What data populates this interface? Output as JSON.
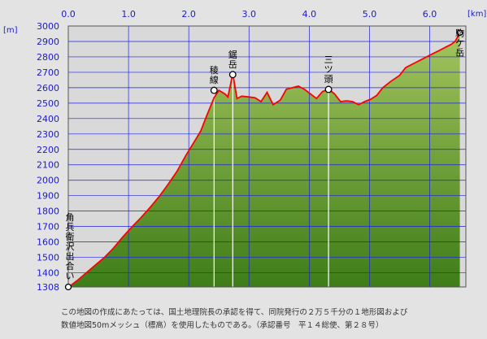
{
  "chart_data": {
    "type": "area",
    "x_unit_label": "[km]",
    "y_unit_label": "[m]",
    "x_ticks": [
      "0.0",
      "1.0",
      "2.0",
      "3.0",
      "4.0",
      "5.0",
      "6.0"
    ],
    "y_ticks": [
      "1308",
      "1400",
      "1500",
      "1600",
      "1700",
      "1800",
      "1900",
      "2000",
      "2100",
      "2200",
      "2300",
      "2400",
      "2500",
      "2600",
      "2700",
      "2800",
      "2900",
      "3000"
    ],
    "xlim": [
      0,
      6.6
    ],
    "ylim": [
      1308,
      3000
    ],
    "grid": true,
    "colors": {
      "plot_bg": "#d9d9d9",
      "grid": "#2020e0",
      "profile_line": "#ff0000",
      "fill_top": "#a4c45e",
      "fill_bottom": "#3e7d18",
      "axis_labels": "#1a1acc"
    },
    "series": [
      {
        "x": [
          0.0,
          0.05,
          0.15,
          0.3,
          0.45,
          0.6,
          0.75,
          0.9,
          1.05,
          1.2,
          1.35,
          1.5,
          1.65,
          1.8,
          1.95,
          2.1,
          2.2,
          2.3,
          2.42,
          2.5,
          2.6,
          2.65,
          2.73,
          2.8,
          2.88,
          3.0,
          3.1,
          3.2,
          3.3,
          3.4,
          3.52,
          3.62,
          3.72,
          3.82,
          3.92,
          4.02,
          4.12,
          4.22,
          4.32,
          4.42,
          4.52,
          4.62,
          4.72,
          4.82,
          4.92,
          5.02,
          5.12,
          5.22,
          5.35,
          5.5,
          5.6,
          5.75,
          5.9,
          6.05,
          6.15,
          6.25,
          6.35,
          6.42,
          6.5
        ],
        "y": [
          1308,
          1320,
          1350,
          1400,
          1450,
          1500,
          1560,
          1630,
          1695,
          1755,
          1820,
          1890,
          1970,
          2055,
          2160,
          2255,
          2320,
          2420,
          2535,
          2583,
          2560,
          2540,
          2690,
          2530,
          2545,
          2540,
          2535,
          2510,
          2570,
          2490,
          2520,
          2590,
          2600,
          2610,
          2590,
          2560,
          2530,
          2575,
          2590,
          2560,
          2510,
          2515,
          2510,
          2490,
          2510,
          2525,
          2550,
          2600,
          2640,
          2680,
          2730,
          2760,
          2790,
          2820,
          2840,
          2860,
          2880,
          2900,
          2956
        ]
      }
    ],
    "summit_markers": [
      {
        "label": "稜線",
        "x": 2.42,
        "y": 2583
      },
      {
        "label": "鋸岳",
        "x": 2.73,
        "y": 2685
      },
      {
        "label": "三ツ頭",
        "x": 4.32,
        "y": 2589
      }
    ],
    "endpoint_labels": {
      "start": {
        "label": "角兵衛沢出合い",
        "x": 0.0,
        "y": 1308
      },
      "end": {
        "label": "駒ケ岳",
        "x": 6.5,
        "y": 2956
      }
    }
  },
  "footnotes": [
    "この地図の作成にあたっては、国土地理院長の承認を得て、同院発行の２万５千分の１地形図および",
    "数値地図50mメッシュ（標高）を使用したものである。（承認番号　平１４総使、第２８号）"
  ]
}
